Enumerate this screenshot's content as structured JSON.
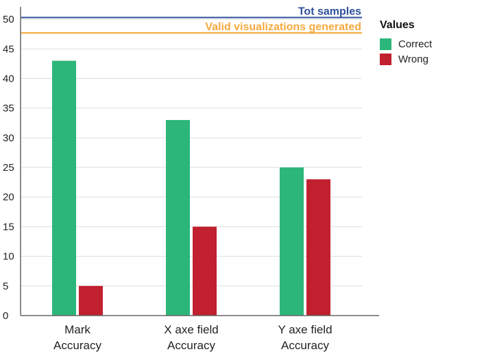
{
  "chart_data": {
    "type": "bar",
    "categories": [
      [
        "Mark",
        "Accuracy"
      ],
      [
        "X axe field",
        "Accuracy"
      ],
      [
        "Y axe field",
        "Accuracy"
      ]
    ],
    "series": [
      {
        "name": "Correct",
        "color": "#2cb67a",
        "values": [
          43,
          33,
          25
        ]
      },
      {
        "name": "Wrong",
        "color": "#c1202f",
        "values": [
          5,
          15,
          23
        ]
      }
    ],
    "reference_lines": [
      {
        "label": "Tot samples",
        "value": 50.3,
        "color": "#2e4f9a"
      },
      {
        "label": "Valid visualizations generated",
        "value": 47.7,
        "color": "#f5a93c"
      }
    ],
    "yticks": [
      0,
      5,
      10,
      15,
      20,
      25,
      30,
      35,
      40,
      45,
      50
    ],
    "ylim": [
      0,
      51.4
    ],
    "grid": true,
    "legend": {
      "title": "Values",
      "position": "right-top"
    }
  }
}
